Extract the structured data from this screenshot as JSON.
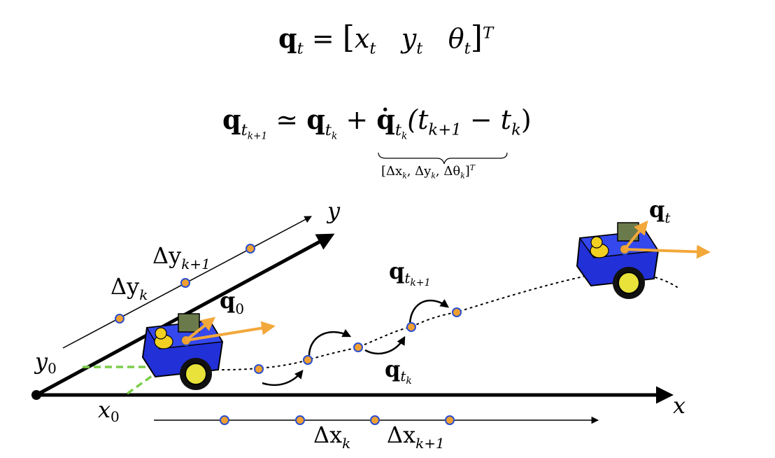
{
  "colors": {
    "axis": "#000000",
    "point_fill": "#f0a030",
    "point_stroke": "#2a4fd0",
    "orientation_arrow": "#f2a83a",
    "dashed_projection": "#7ccd4a",
    "robot_body": "#2230d8",
    "robot_wheel": "#e8e23a"
  },
  "equations": {
    "state": {
      "lhs_symbol": "q",
      "lhs_sub": "t",
      "equals": "=",
      "open": "[",
      "x": "x",
      "x_sub": "t",
      "y": "y",
      "y_sub": "t",
      "theta": "θ",
      "theta_sub": "t",
      "close": "]",
      "transpose": "T"
    },
    "update": {
      "lhs_symbol": "q",
      "lhs_sub": "t",
      "lhs_subsub": "k+1",
      "approx": "≃",
      "q": "q",
      "q_sub": "t",
      "q_subsub": "k",
      "plus": "+",
      "qdot": "q̇",
      "qdot_sub": "t",
      "qdot_subsub": "k",
      "dt": "(t",
      "dt_sub": "k+1",
      "minus": " − t",
      "dt_sub2": "k",
      "close": ")",
      "underbrace_label": "[Δx",
      "ub_xsub": "k",
      "ub_y": ", Δy",
      "ub_ysub": "k",
      "ub_t": ", Δθ",
      "ub_tsub": "k",
      "ub_close": "]",
      "ub_sup": "T"
    }
  },
  "axes": {
    "x_label": "x",
    "y_label": "y",
    "x0_label": "x",
    "x0_sub": "0",
    "y0_label": "y",
    "y0_sub": "0"
  },
  "annotations": {
    "dx_k": "Δx",
    "dx_k_sub": "k",
    "dx_k1": "Δx",
    "dx_k1_sub": "k+1",
    "dy_k": "Δy",
    "dy_k_sub": "k",
    "dy_k1": "Δy",
    "dy_k1_sub": "k+1",
    "q0": "q",
    "q0_sub": "0",
    "qt": "q",
    "qt_sub": "t",
    "qtk": "q",
    "qtk_sub": "t",
    "qtk_subsub": "k",
    "qtk1": "q",
    "qtk1_sub": "t",
    "qtk1_subsub": "k+1"
  }
}
